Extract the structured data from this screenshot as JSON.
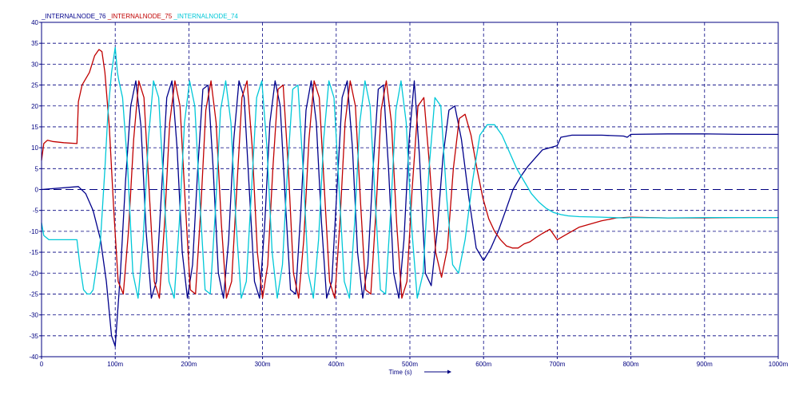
{
  "chart_data": {
    "type": "line",
    "xlabel": "Time (s)",
    "xlim": [
      0,
      1000
    ],
    "ylim": [
      -40,
      40
    ],
    "x_ticks": [
      {
        "value": 0,
        "label": "0"
      },
      {
        "value": 100,
        "label": "100m"
      },
      {
        "value": 200,
        "label": "200m"
      },
      {
        "value": 300,
        "label": "300m"
      },
      {
        "value": 400,
        "label": "400m"
      },
      {
        "value": 500,
        "label": "500m"
      },
      {
        "value": 600,
        "label": "600m"
      },
      {
        "value": 700,
        "label": "700m"
      },
      {
        "value": 800,
        "label": "800m"
      },
      {
        "value": 900,
        "label": "900m"
      },
      {
        "value": 1000,
        "label": "1000m"
      }
    ],
    "y_ticks": [
      {
        "value": 40,
        "label": "40"
      },
      {
        "value": 35,
        "label": "35"
      },
      {
        "value": 30,
        "label": "30"
      },
      {
        "value": 25,
        "label": "25"
      },
      {
        "value": 20,
        "label": "20"
      },
      {
        "value": 15,
        "label": "15"
      },
      {
        "value": 10,
        "label": "10"
      },
      {
        "value": 5,
        "label": "5"
      },
      {
        "value": 0,
        "label": "0"
      },
      {
        "value": -5,
        "label": "-5"
      },
      {
        "value": -10,
        "label": "-10"
      },
      {
        "value": -15,
        "label": "-15"
      },
      {
        "value": -20,
        "label": "-20"
      },
      {
        "value": -25,
        "label": "-25"
      },
      {
        "value": -30,
        "label": "-30"
      },
      {
        "value": -35,
        "label": "-35"
      },
      {
        "value": -40,
        "label": "-40"
      }
    ],
    "grid": true,
    "legend_position": "top-left",
    "axis_color": "#000080",
    "series": [
      {
        "name": "_INTERNALNODE_76",
        "color": "#00008b",
        "x": [
          0,
          50,
          60,
          70,
          80,
          88,
          95,
          100,
          107,
          114,
          121,
          128,
          135,
          142,
          149,
          156,
          163,
          170,
          177,
          184,
          191,
          198,
          205,
          212,
          219,
          226,
          233,
          240,
          247,
          254,
          261,
          268,
          275,
          282,
          289,
          296,
          303,
          310,
          317,
          324,
          331,
          338,
          345,
          352,
          359,
          366,
          373,
          380,
          387,
          394,
          401,
          408,
          415,
          422,
          429,
          436,
          443,
          450,
          457,
          464,
          471,
          478,
          485,
          492,
          499,
          506,
          513,
          521,
          529,
          537,
          545,
          553,
          561,
          570,
          580,
          590,
          600,
          610,
          620,
          630,
          640,
          650,
          660,
          670,
          680,
          690,
          700,
          705,
          720,
          760,
          790,
          795,
          800,
          850,
          900,
          950,
          1000
        ],
        "values": [
          0,
          0.7,
          -1,
          -5,
          -12,
          -22,
          -35,
          -37.5,
          -20,
          2,
          20,
          26,
          15,
          -10,
          -26,
          -22,
          0,
          22,
          26,
          10,
          -15,
          -26,
          -18,
          5,
          24,
          25,
          5,
          -20,
          -26,
          -12,
          12,
          26,
          22,
          0,
          -22,
          -26,
          -8,
          16,
          26,
          20,
          -3,
          -24,
          -25,
          -5,
          19,
          26,
          16,
          -8,
          -26,
          -22,
          0,
          22,
          26,
          10,
          -15,
          -26,
          -18,
          5,
          24,
          25,
          5,
          -20,
          -26,
          -12,
          12,
          26,
          8,
          -20,
          -23,
          -10,
          8,
          19,
          20,
          12,
          -2,
          -14,
          -17,
          -14,
          -10,
          -5,
          0,
          3,
          5.5,
          7.5,
          9.5,
          10,
          10.5,
          12.5,
          13,
          13,
          12.8,
          12.5,
          13.2,
          13.3,
          13.3,
          13.2,
          13.2
        ]
      },
      {
        "name": "_INTERNALNODE_75",
        "color": "#c00000",
        "x": [
          0,
          3,
          8,
          15,
          30,
          48,
          50,
          55,
          65,
          72,
          78,
          82,
          86,
          92,
          98,
          104,
          111,
          118,
          125,
          132,
          139,
          146,
          153,
          160,
          167,
          174,
          181,
          188,
          195,
          202,
          209,
          216,
          223,
          230,
          237,
          244,
          251,
          258,
          265,
          272,
          279,
          286,
          293,
          300,
          307,
          314,
          321,
          328,
          335,
          342,
          349,
          356,
          363,
          370,
          377,
          384,
          391,
          398,
          405,
          412,
          419,
          426,
          433,
          440,
          447,
          454,
          461,
          468,
          475,
          482,
          489,
          496,
          503,
          511,
          519,
          527,
          535,
          543,
          551,
          559,
          567,
          575,
          583,
          591,
          599,
          607,
          615,
          623,
          631,
          639,
          647,
          655,
          663,
          671,
          680,
          690,
          700,
          710,
          730,
          760,
          780,
          800,
          850,
          900,
          950,
          1000
        ],
        "values": [
          7,
          11,
          11.8,
          11.5,
          11.2,
          11,
          21,
          25,
          28,
          32,
          33.5,
          33,
          28,
          15,
          -5,
          -22,
          -25,
          -10,
          12,
          26,
          22,
          0,
          -22,
          -26,
          -8,
          16,
          26,
          20,
          -3,
          -24,
          -25,
          -5,
          19,
          26,
          16,
          -8,
          -26,
          -22,
          0,
          22,
          26,
          10,
          -15,
          -26,
          -18,
          5,
          24,
          25,
          5,
          -20,
          -26,
          -12,
          12,
          26,
          22,
          0,
          -22,
          -26,
          -8,
          16,
          26,
          20,
          -3,
          -24,
          -25,
          -5,
          19,
          26,
          16,
          -8,
          -26,
          -22,
          0,
          20,
          22,
          5,
          -15,
          -21,
          -14,
          5,
          17,
          18,
          13,
          5,
          -2,
          -7,
          -10,
          -12,
          -13.5,
          -14,
          -14,
          -13,
          -12.5,
          -11.5,
          -10.5,
          -9.5,
          -12,
          -11,
          -9,
          -7.5,
          -6.8,
          -6.6,
          -6.8,
          -6.8,
          -6.7,
          -6.7
        ]
      },
      {
        "name": "_INTERNALNODE_74",
        "color": "#00c8d8",
        "x": [
          0,
          3,
          10,
          30,
          48,
          52,
          57,
          62,
          66,
          70,
          80,
          86,
          90,
          95,
          100,
          103,
          105,
          110,
          117,
          124,
          131,
          138,
          145,
          152,
          159,
          166,
          173,
          180,
          187,
          194,
          201,
          208,
          215,
          222,
          229,
          236,
          243,
          250,
          257,
          264,
          271,
          278,
          285,
          292,
          299,
          306,
          313,
          320,
          327,
          334,
          341,
          348,
          355,
          362,
          369,
          376,
          383,
          390,
          397,
          404,
          411,
          418,
          425,
          432,
          439,
          446,
          453,
          460,
          467,
          474,
          481,
          488,
          495,
          502,
          510,
          518,
          526,
          534,
          542,
          550,
          558,
          566,
          575,
          585,
          595,
          605,
          615,
          625,
          635,
          645,
          655,
          665,
          675,
          685,
          695,
          705,
          715,
          730,
          760,
          790,
          800,
          850,
          900,
          950,
          1000
        ],
        "values": [
          -8,
          -11,
          -12,
          -12,
          -12,
          -18,
          -24,
          -25,
          -25,
          -24,
          -12,
          5,
          18,
          28,
          34,
          28,
          26,
          22,
          5,
          -20,
          -26,
          -12,
          12,
          26,
          22,
          0,
          -22,
          -26,
          -8,
          16,
          26,
          20,
          -3,
          -24,
          -25,
          -5,
          19,
          26,
          16,
          -8,
          -26,
          -22,
          0,
          22,
          26,
          10,
          -15,
          -26,
          -18,
          5,
          24,
          25,
          5,
          -20,
          -26,
          -12,
          12,
          26,
          22,
          0,
          -22,
          -26,
          -8,
          16,
          26,
          20,
          -3,
          -24,
          -25,
          -5,
          19,
          26,
          16,
          -8,
          -26,
          -20,
          5,
          22,
          20,
          -2,
          -18,
          -20,
          -12,
          2,
          13,
          15.5,
          15.5,
          13,
          9,
          5,
          2,
          -1,
          -3,
          -4.5,
          -5.5,
          -6,
          -6.3,
          -6.5,
          -6.6,
          -6.8,
          -6.7,
          -6.8,
          -6.7,
          -6.7,
          -6.7
        ]
      }
    ]
  }
}
